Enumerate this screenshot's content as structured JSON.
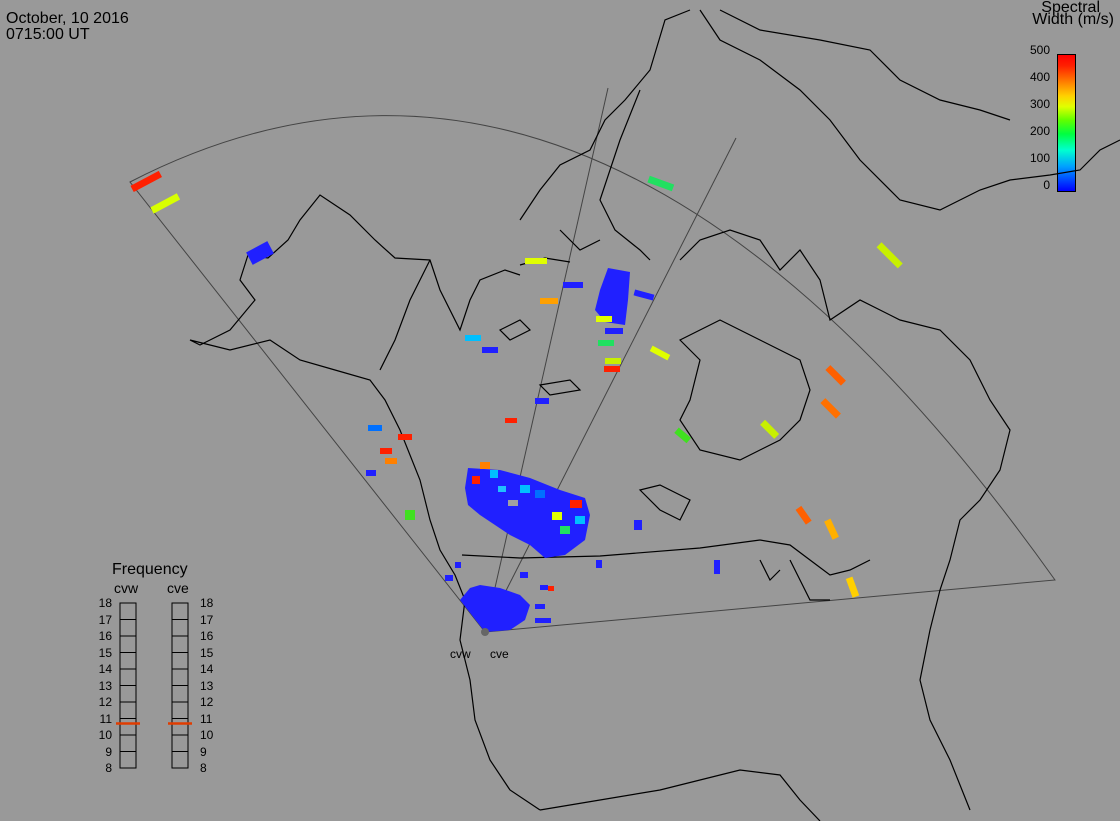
{
  "header": {
    "date": "October, 10 2016",
    "time": "0715:00 UT"
  },
  "colorbar": {
    "title_line1": "Spectral",
    "title_line2": "Width (m/s)",
    "ticks": [
      "500",
      "400",
      "300",
      "200",
      "100",
      "0"
    ],
    "range": [
      0,
      500
    ],
    "colors": [
      "#0000ff",
      "#00ffd0",
      "#40ff00",
      "#e0ff00",
      "#ff8000",
      "#ff0000"
    ]
  },
  "frequency_panel": {
    "title": "Frequency",
    "radars": [
      "cvw",
      "cve"
    ],
    "scale": [
      "18",
      "17",
      "16",
      "15",
      "14",
      "13",
      "12",
      "11",
      "10",
      "9",
      "8"
    ],
    "current_mhz": {
      "cvw": 10.7,
      "cve": 10.7
    },
    "marker_color": "#e03c00"
  },
  "radar_labels": [
    "cvw",
    "cve"
  ],
  "colors": {
    "background": "#999999",
    "map_lines": "#000000",
    "fov_lines": "#444444"
  }
}
